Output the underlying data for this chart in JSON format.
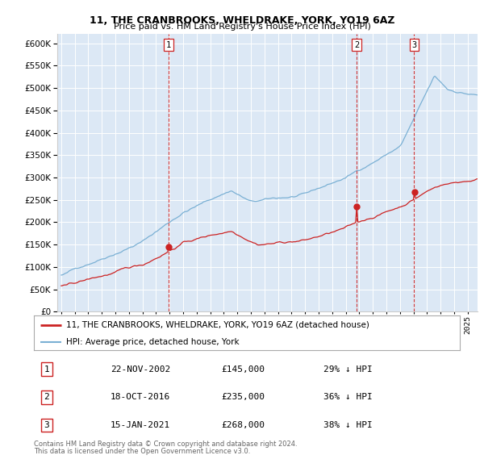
{
  "title1": "11, THE CRANBROOKS, WHELDRAKE, YORK, YO19 6AZ",
  "title2": "Price paid vs. HM Land Registry's House Price Index (HPI)",
  "plot_bg_color": "#dce8f5",
  "hpi_color": "#7ab0d4",
  "price_color": "#cc2222",
  "vline_color": "#cc2222",
  "transactions": [
    {
      "date": 2002.92,
      "price": 145000,
      "label": "1"
    },
    {
      "date": 2016.8,
      "price": 235000,
      "label": "2"
    },
    {
      "date": 2021.05,
      "price": 268000,
      "label": "3"
    }
  ],
  "table_data": [
    [
      "1",
      "22-NOV-2002",
      "£145,000",
      "29% ↓ HPI"
    ],
    [
      "2",
      "18-OCT-2016",
      "£235,000",
      "36% ↓ HPI"
    ],
    [
      "3",
      "15-JAN-2021",
      "£268,000",
      "38% ↓ HPI"
    ]
  ],
  "legend_line1": "11, THE CRANBROOKS, WHELDRAKE, YORK, YO19 6AZ (detached house)",
  "legend_line2": "HPI: Average price, detached house, York",
  "footer1": "Contains HM Land Registry data © Crown copyright and database right 2024.",
  "footer2": "This data is licensed under the Open Government Licence v3.0.",
  "ylim": [
    0,
    620000
  ],
  "yticks": [
    0,
    50000,
    100000,
    150000,
    200000,
    250000,
    300000,
    350000,
    400000,
    450000,
    500000,
    550000,
    600000
  ]
}
